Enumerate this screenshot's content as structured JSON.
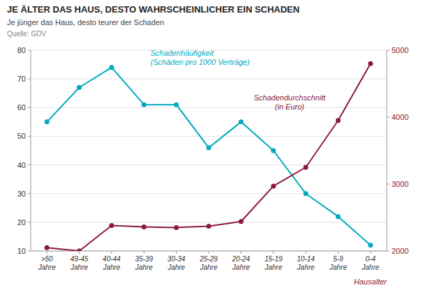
{
  "chart_data": {
    "type": "line",
    "title": "JE ÄLTER DAS HAUS, DESTO WAHRSCHEINLICHER EIN SCHADEN",
    "subtitle": "Je jünger das Haus, desto teurer der Schaden",
    "source": "Quelle: GDV",
    "xlabel": "Hausalter",
    "categories": [
      ">50\nJahre",
      "49-45\nJahre",
      "40-44\nJahre",
      "35-39\nJahre",
      "30-34\nJahre",
      "25-29\nJahre",
      "20-24\nJahre",
      "15-19\nJahre",
      "10-14\nJahre",
      "5-9\nJahre",
      "0-4\nJahre"
    ],
    "series": [
      {
        "name": "Schadenhäufigkeit\n(Schäden pro 1000 Verträge)",
        "color": "#00AABD",
        "marker": "circle",
        "values": [
          55,
          67,
          74,
          61,
          61,
          46,
          55,
          45,
          30,
          22,
          12
        ]
      },
      {
        "name": "Schadendurchschnitt\n(in Euro)",
        "color": "#8B1A3A",
        "marker": "circle",
        "axis": "y2",
        "values": [
          2050,
          2000,
          2380,
          2360,
          2350,
          2370,
          2440,
          2970,
          3250,
          3950,
          4800
        ]
      }
    ],
    "ylim": [
      10,
      80
    ],
    "yticks": [
      10,
      20,
      30,
      40,
      50,
      60,
      70,
      80
    ],
    "y2lim": [
      2000,
      5000
    ],
    "y2ticks": [
      2000,
      3000,
      4000,
      5000
    ],
    "grid": true
  }
}
